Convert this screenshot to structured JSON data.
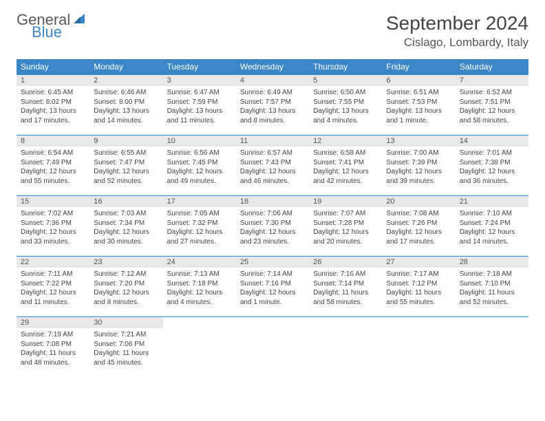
{
  "logo": {
    "text_general": "General",
    "text_blue": "Blue"
  },
  "header": {
    "month_title": "September 2024",
    "location": "Cislago, Lombardy, Italy"
  },
  "colors": {
    "header_bg": "#3b87c7",
    "daynum_bg": "#e8e8e8",
    "border": "#3b87c7",
    "text_title": "#444444",
    "text_body": "#444444"
  },
  "day_headers": [
    "Sunday",
    "Monday",
    "Tuesday",
    "Wednesday",
    "Thursday",
    "Friday",
    "Saturday"
  ],
  "weeks": [
    [
      {
        "n": "1",
        "sr": "6:45 AM",
        "ss": "8:02 PM",
        "dl": "13 hours and 17 minutes."
      },
      {
        "n": "2",
        "sr": "6:46 AM",
        "ss": "8:00 PM",
        "dl": "13 hours and 14 minutes."
      },
      {
        "n": "3",
        "sr": "6:47 AM",
        "ss": "7:59 PM",
        "dl": "13 hours and 11 minutes."
      },
      {
        "n": "4",
        "sr": "6:49 AM",
        "ss": "7:57 PM",
        "dl": "13 hours and 8 minutes."
      },
      {
        "n": "5",
        "sr": "6:50 AM",
        "ss": "7:55 PM",
        "dl": "13 hours and 4 minutes."
      },
      {
        "n": "6",
        "sr": "6:51 AM",
        "ss": "7:53 PM",
        "dl": "13 hours and 1 minute."
      },
      {
        "n": "7",
        "sr": "6:52 AM",
        "ss": "7:51 PM",
        "dl": "12 hours and 58 minutes."
      }
    ],
    [
      {
        "n": "8",
        "sr": "6:54 AM",
        "ss": "7:49 PM",
        "dl": "12 hours and 55 minutes."
      },
      {
        "n": "9",
        "sr": "6:55 AM",
        "ss": "7:47 PM",
        "dl": "12 hours and 52 minutes."
      },
      {
        "n": "10",
        "sr": "6:56 AM",
        "ss": "7:45 PM",
        "dl": "12 hours and 49 minutes."
      },
      {
        "n": "11",
        "sr": "6:57 AM",
        "ss": "7:43 PM",
        "dl": "12 hours and 46 minutes."
      },
      {
        "n": "12",
        "sr": "6:58 AM",
        "ss": "7:41 PM",
        "dl": "12 hours and 42 minutes."
      },
      {
        "n": "13",
        "sr": "7:00 AM",
        "ss": "7:39 PM",
        "dl": "12 hours and 39 minutes."
      },
      {
        "n": "14",
        "sr": "7:01 AM",
        "ss": "7:38 PM",
        "dl": "12 hours and 36 minutes."
      }
    ],
    [
      {
        "n": "15",
        "sr": "7:02 AM",
        "ss": "7:36 PM",
        "dl": "12 hours and 33 minutes."
      },
      {
        "n": "16",
        "sr": "7:03 AM",
        "ss": "7:34 PM",
        "dl": "12 hours and 30 minutes."
      },
      {
        "n": "17",
        "sr": "7:05 AM",
        "ss": "7:32 PM",
        "dl": "12 hours and 27 minutes."
      },
      {
        "n": "18",
        "sr": "7:06 AM",
        "ss": "7:30 PM",
        "dl": "12 hours and 23 minutes."
      },
      {
        "n": "19",
        "sr": "7:07 AM",
        "ss": "7:28 PM",
        "dl": "12 hours and 20 minutes."
      },
      {
        "n": "20",
        "sr": "7:08 AM",
        "ss": "7:26 PM",
        "dl": "12 hours and 17 minutes."
      },
      {
        "n": "21",
        "sr": "7:10 AM",
        "ss": "7:24 PM",
        "dl": "12 hours and 14 minutes."
      }
    ],
    [
      {
        "n": "22",
        "sr": "7:11 AM",
        "ss": "7:22 PM",
        "dl": "12 hours and 11 minutes."
      },
      {
        "n": "23",
        "sr": "7:12 AM",
        "ss": "7:20 PM",
        "dl": "12 hours and 8 minutes."
      },
      {
        "n": "24",
        "sr": "7:13 AM",
        "ss": "7:18 PM",
        "dl": "12 hours and 4 minutes."
      },
      {
        "n": "25",
        "sr": "7:14 AM",
        "ss": "7:16 PM",
        "dl": "12 hours and 1 minute."
      },
      {
        "n": "26",
        "sr": "7:16 AM",
        "ss": "7:14 PM",
        "dl": "11 hours and 58 minutes."
      },
      {
        "n": "27",
        "sr": "7:17 AM",
        "ss": "7:12 PM",
        "dl": "11 hours and 55 minutes."
      },
      {
        "n": "28",
        "sr": "7:18 AM",
        "ss": "7:10 PM",
        "dl": "11 hours and 52 minutes."
      }
    ],
    [
      {
        "n": "29",
        "sr": "7:19 AM",
        "ss": "7:08 PM",
        "dl": "11 hours and 48 minutes."
      },
      {
        "n": "30",
        "sr": "7:21 AM",
        "ss": "7:06 PM",
        "dl": "11 hours and 45 minutes."
      },
      null,
      null,
      null,
      null,
      null
    ]
  ],
  "labels": {
    "sunrise": "Sunrise:",
    "sunset": "Sunset:",
    "daylight": "Daylight:"
  }
}
